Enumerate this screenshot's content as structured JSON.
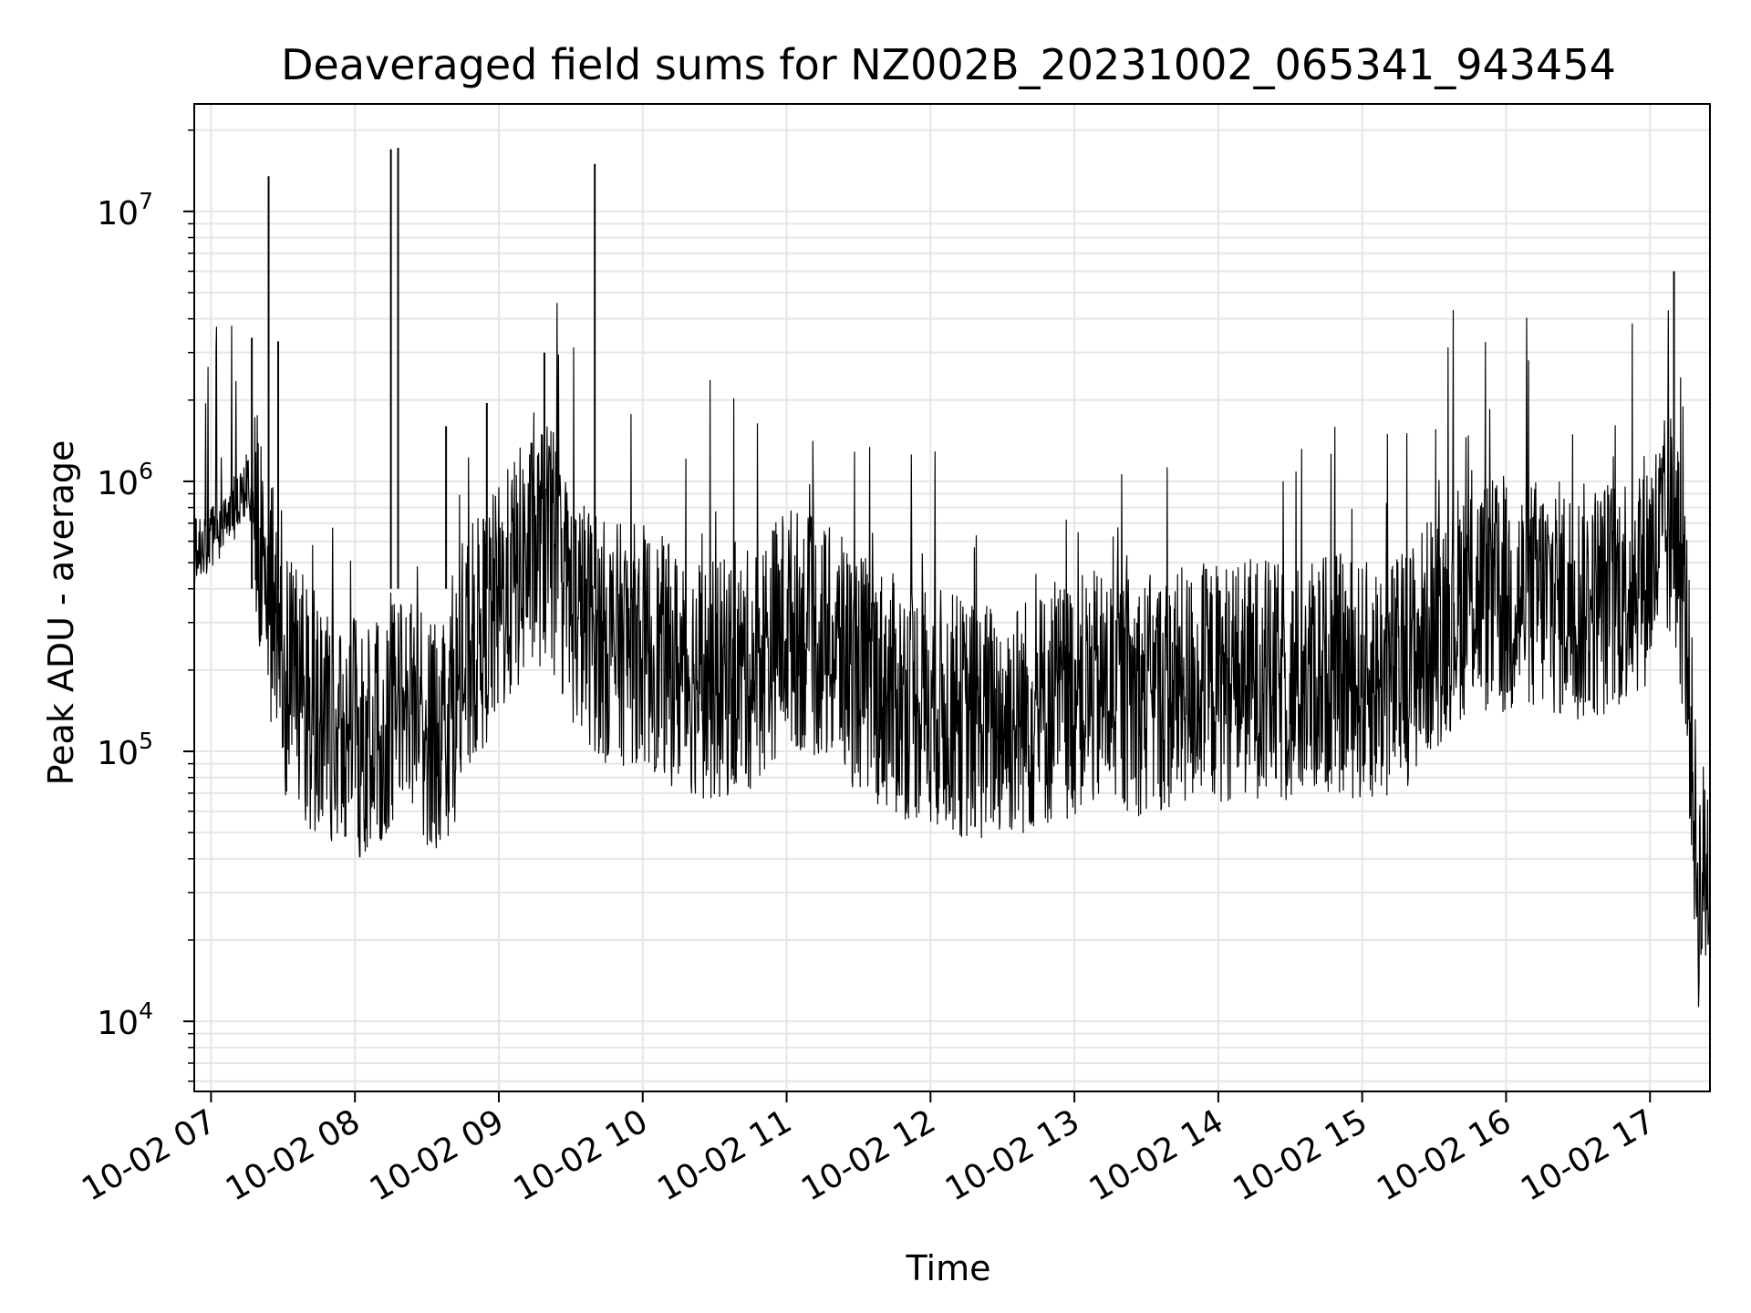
{
  "chart_data": {
    "type": "line",
    "title": "Deaveraged field sums for NZ002B_20231002_065341_943454",
    "xlabel": "Time",
    "ylabel": "Peak ADU - average",
    "yscale": "log",
    "ylim": [
      5500,
      25000000
    ],
    "xlim": [
      "10-02 06:53",
      "10-02 17:25"
    ],
    "grid": true,
    "line_color": "#000000",
    "grid_color": "#e6e6e6",
    "x_ticks": [
      "10-02 07",
      "10-02 08",
      "10-02 09",
      "10-02 10",
      "10-02 11",
      "10-02 12",
      "10-02 13",
      "10-02 14",
      "10-02 15",
      "10-02 16",
      "10-02 17"
    ],
    "y_ticks": [
      {
        "value": 10000,
        "base": "10",
        "exp": "4"
      },
      {
        "value": 100000,
        "base": "10",
        "exp": "5"
      },
      {
        "value": 1000000,
        "base": "10",
        "exp": "6"
      },
      {
        "value": 10000000,
        "base": "10",
        "exp": "7"
      }
    ],
    "series": [
      {
        "x": [
          "10-02 06:53",
          "10-02 07:00",
          "10-02 07:10",
          "10-02 07:15",
          "10-02 07:20",
          "10-02 07:25",
          "10-02 07:30",
          "10-02 07:40",
          "10-02 07:50",
          "10-02 08:00",
          "10-02 08:10",
          "10-02 08:20",
          "10-02 08:30",
          "10-02 08:40",
          "10-02 08:50",
          "10-02 09:00",
          "10-02 09:10",
          "10-02 09:20",
          "10-02 09:30",
          "10-02 09:45",
          "10-02 10:00",
          "10-02 10:15",
          "10-02 10:30",
          "10-02 10:45",
          "10-02 11:00",
          "10-02 11:15",
          "10-02 11:30",
          "10-02 11:45",
          "10-02 12:00",
          "10-02 12:15",
          "10-02 12:30",
          "10-02 12:45",
          "10-02 13:00",
          "10-02 13:15",
          "10-02 13:30",
          "10-02 13:45",
          "10-02 14:00",
          "10-02 14:15",
          "10-02 14:30",
          "10-02 14:45",
          "10-02 15:00",
          "10-02 15:15",
          "10-02 15:30",
          "10-02 15:45",
          "10-02 16:00",
          "10-02 16:15",
          "10-02 16:30",
          "10-02 16:45",
          "10-02 17:00",
          "10-02 17:10",
          "10-02 17:15",
          "10-02 17:20",
          "10-02 17:25"
        ],
        "y": [
          550000,
          600000,
          800000,
          1000000,
          600000,
          350000,
          200000,
          150000,
          120000,
          110000,
          130000,
          150000,
          110000,
          140000,
          250000,
          350000,
          500000,
          600000,
          350000,
          250000,
          250000,
          200000,
          180000,
          200000,
          300000,
          250000,
          200000,
          160000,
          150000,
          130000,
          130000,
          140000,
          160000,
          170000,
          160000,
          170000,
          180000,
          190000,
          170000,
          200000,
          180000,
          190000,
          280000,
          400000,
          350000,
          380000,
          350000,
          380000,
          500000,
          700000,
          300000,
          30000,
          40000
        ]
      }
    ],
    "spikes": [
      {
        "x": "10-02 07:17",
        "y": 3400000
      },
      {
        "x": "10-02 07:28",
        "y": 3300000
      },
      {
        "x": "10-02 07:24",
        "y": 13500000
      },
      {
        "x": "10-02 08:15",
        "y": 17000000
      },
      {
        "x": "10-02 08:18",
        "y": 17200000
      },
      {
        "x": "10-02 08:38",
        "y": 1600000
      },
      {
        "x": "10-02 08:55",
        "y": 1950000
      },
      {
        "x": "10-02 09:19",
        "y": 3000000
      },
      {
        "x": "10-02 09:40",
        "y": 15000000
      },
      {
        "x": "10-02 17:10",
        "y": 6000000
      }
    ]
  }
}
